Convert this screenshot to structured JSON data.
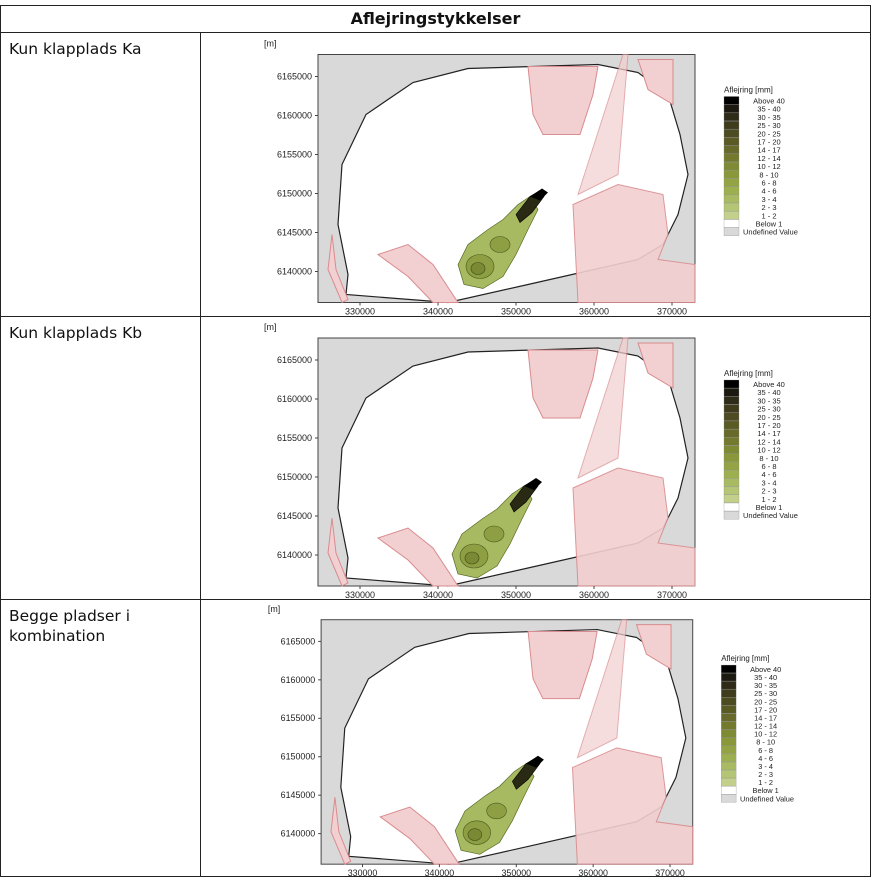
{
  "table": {
    "header": "Aflejringstykkelser",
    "rows": [
      {
        "label": "Kun klapplads Ka"
      },
      {
        "label": "Kun klapplads Kb"
      },
      {
        "label": "Begge pladser i kombination"
      }
    ]
  },
  "map": {
    "unit_label": "[m]",
    "y_ticks": [
      "6165000",
      "6160000",
      "6155000",
      "6150000",
      "6145000",
      "6140000"
    ],
    "x_ticks": [
      "330000",
      "340000",
      "350000",
      "360000",
      "370000"
    ],
    "legend": {
      "title": "Aflejring [mm]",
      "items": [
        {
          "label": "Above 40",
          "color": "#000000"
        },
        {
          "label": "35 - 40",
          "color": "#1c1a10"
        },
        {
          "label": "30 - 35",
          "color": "#2e2c18"
        },
        {
          "label": "25 - 30",
          "color": "#3f3c1e"
        },
        {
          "label": "20 - 25",
          "color": "#4d4b22"
        },
        {
          "label": "17 - 20",
          "color": "#5a5a25"
        },
        {
          "label": "14 - 17",
          "color": "#676a2a"
        },
        {
          "label": "12 - 14",
          "color": "#737a2e"
        },
        {
          "label": "10 - 12",
          "color": "#7f8a34"
        },
        {
          "label": "8 - 10",
          "color": "#8a983a"
        },
        {
          "label": "6 - 8",
          "color": "#94a444"
        },
        {
          "label": "4 - 6",
          "color": "#9db050"
        },
        {
          "label": "3 - 4",
          "color": "#a8bb62"
        },
        {
          "label": "2 - 3",
          "color": "#b4c576"
        },
        {
          "label": "1 - 2",
          "color": "#c2d08c"
        },
        {
          "label": "Below 1",
          "color": "#ffffff"
        },
        {
          "label": "Undefined Value",
          "color": "#d9d9d9"
        }
      ]
    },
    "colors": {
      "land": "#d9d9d9",
      "sea": "#ffffff",
      "zone": "#f2cfd0",
      "zone_edge": "#d98b8e"
    }
  }
}
